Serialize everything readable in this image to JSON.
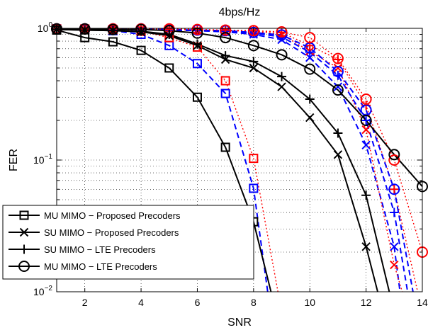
{
  "chart_data": {
    "type": "line",
    "title": "4bps/Hz",
    "xlabel": "SNR",
    "ylabel": "FER",
    "x_ticks": [
      "2",
      "4",
      "6",
      "8",
      "10",
      "12",
      "14"
    ],
    "y_ticks": [
      {
        "base": "10",
        "exp": "0",
        "value": 1
      },
      {
        "base": "10",
        "exp": "−1",
        "value": 0.1
      },
      {
        "base": "10",
        "exp": "−2",
        "value": 0.01
      }
    ],
    "xlim": [
      1,
      14
    ],
    "ylim": [
      0.01,
      1
    ],
    "y_scale": "log",
    "grid": true,
    "legend_position": "lower-left",
    "series": [
      {
        "name": "MU MIMO − Proposed Precoders",
        "color": "#000000",
        "dash": "solid",
        "marker": "square",
        "x": [
          1,
          2,
          3,
          4,
          5,
          6,
          7,
          8,
          8.8
        ],
        "y": [
          0.97,
          0.85,
          0.79,
          0.68,
          0.5,
          0.3,
          0.125,
          0.034,
          0.007
        ]
      },
      {
        "name": "SU MIMO − Proposed Precoders",
        "color": "#000000",
        "dash": "solid",
        "marker": "x",
        "x": [
          1,
          2,
          3,
          4,
          5,
          6,
          7,
          8,
          9,
          10,
          11,
          12,
          12.6
        ],
        "y": [
          0.98,
          0.97,
          0.96,
          0.94,
          0.88,
          0.74,
          0.58,
          0.5,
          0.36,
          0.21,
          0.11,
          0.022,
          0.007
        ]
      },
      {
        "name": "SU MIMO − LTE Precoders",
        "color": "#000000",
        "dash": "solid",
        "marker": "plus",
        "x": [
          1,
          2,
          3,
          4,
          5,
          6,
          7,
          8,
          9,
          10,
          11,
          12,
          13
        ],
        "y": [
          0.98,
          0.97,
          0.96,
          0.95,
          0.9,
          0.76,
          0.62,
          0.56,
          0.43,
          0.29,
          0.16,
          0.054,
          0.007
        ]
      },
      {
        "name": "MU MIMO − LTE Precoders",
        "color": "#000000",
        "dash": "solid",
        "marker": "circle",
        "x": [
          1,
          2,
          3,
          4,
          5,
          6,
          7,
          8,
          9,
          10,
          11,
          12,
          13,
          14
        ],
        "y": [
          0.99,
          0.99,
          0.98,
          0.98,
          0.96,
          0.92,
          0.85,
          0.74,
          0.63,
          0.49,
          0.34,
          0.2,
          0.11,
          0.063
        ]
      },
      {
        "color": "#0000ff",
        "dash": "dashed",
        "marker": "square",
        "x": [
          1,
          2,
          3,
          4,
          5,
          6,
          7,
          8,
          8.6
        ],
        "y": [
          0.99,
          0.98,
          0.96,
          0.9,
          0.74,
          0.54,
          0.32,
          0.061,
          0.007
        ]
      },
      {
        "color": "#ff0000",
        "dash": "dotted",
        "marker": "square",
        "x": [
          1,
          2,
          3,
          4,
          5,
          6,
          7,
          8,
          9
        ],
        "y": [
          0.99,
          0.99,
          0.98,
          0.95,
          0.85,
          0.72,
          0.4,
          0.103,
          0.007
        ]
      },
      {
        "color": "#0000ff",
        "dash": "dashed",
        "marker": "x",
        "x": [
          1,
          2,
          3,
          4,
          5,
          6,
          7,
          8,
          9,
          10,
          11,
          12,
          13,
          13.3
        ],
        "y": [
          0.99,
          0.99,
          0.98,
          0.98,
          0.97,
          0.96,
          0.94,
          0.9,
          0.82,
          0.6,
          0.36,
          0.13,
          0.022,
          0.007
        ]
      },
      {
        "color": "#ff0000",
        "dash": "dotted",
        "marker": "x",
        "x": [
          1,
          2,
          3,
          4,
          5,
          6,
          7,
          8,
          9,
          10,
          11,
          12,
          13,
          13.5
        ],
        "y": [
          0.99,
          0.99,
          0.99,
          0.99,
          0.98,
          0.97,
          0.96,
          0.95,
          0.9,
          0.67,
          0.5,
          0.17,
          0.016,
          0.007
        ]
      },
      {
        "color": "#0000ff",
        "dash": "dashed",
        "marker": "plus",
        "x": [
          1,
          2,
          3,
          4,
          5,
          6,
          7,
          8,
          9,
          10,
          11,
          12,
          13,
          13.6
        ],
        "y": [
          0.99,
          0.99,
          0.98,
          0.98,
          0.97,
          0.96,
          0.95,
          0.92,
          0.86,
          0.66,
          0.44,
          0.2,
          0.04,
          0.007
        ]
      },
      {
        "color": "#ff0000",
        "dash": "dotted",
        "marker": "plus",
        "x": [
          1,
          2,
          3,
          4,
          5,
          6,
          7,
          8,
          9,
          10,
          11,
          12,
          13,
          14
        ],
        "y": [
          0.99,
          0.99,
          0.99,
          0.99,
          0.98,
          0.98,
          0.97,
          0.96,
          0.93,
          0.74,
          0.58,
          0.26,
          0.06,
          0.007
        ]
      },
      {
        "color": "#0000ff",
        "dash": "dashed",
        "marker": "circle",
        "x": [
          1,
          2,
          3,
          4,
          5,
          6,
          7,
          8,
          9,
          10,
          11,
          12,
          13,
          13.8
        ],
        "y": [
          0.99,
          0.99,
          0.99,
          0.99,
          0.98,
          0.97,
          0.96,
          0.93,
          0.89,
          0.71,
          0.47,
          0.24,
          0.06,
          0.007
        ]
      },
      {
        "color": "#ff0000",
        "dash": "dotted",
        "marker": "circle",
        "x": [
          1,
          2,
          3,
          4,
          5,
          6,
          7,
          8,
          9,
          10,
          11,
          12,
          13,
          14
        ],
        "y": [
          0.99,
          0.99,
          0.99,
          0.99,
          0.99,
          0.98,
          0.97,
          0.96,
          0.94,
          0.85,
          0.59,
          0.29,
          0.1,
          0.02
        ]
      }
    ]
  }
}
